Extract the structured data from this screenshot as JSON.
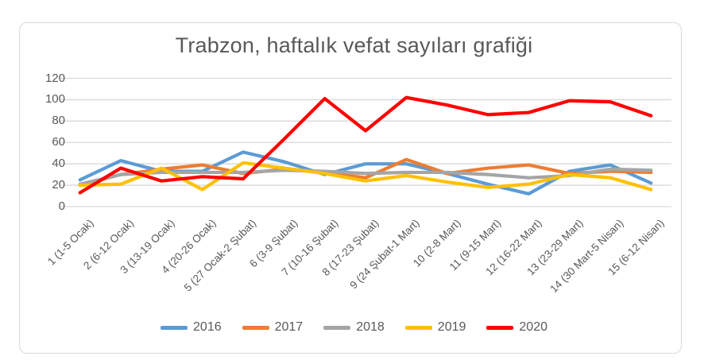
{
  "chart_data": {
    "type": "line",
    "title": "Trabzon, haftalık vefat sayıları grafiği",
    "xlabel": "",
    "ylabel": "",
    "ylim": [
      0,
      120
    ],
    "ytick_step": 20,
    "yticks": [
      0,
      20,
      40,
      60,
      80,
      100,
      120
    ],
    "grid": true,
    "legend_position": "bottom",
    "categories": [
      "1 (1-5 Ocak)",
      "2 (6-12 Ocak)",
      "3 (13-19 Ocak)",
      "4 (20-26 Ocak)",
      "5 (27 Ocak-2 Şubat)",
      "6 (3-9 Şubat)",
      "7 (10-16 Şubat)",
      "8 (17-23 Şubat)",
      "9 (24 Şubat-1 Mart)",
      "10 (2-8 Mart)",
      "11 (9-15 Mart)",
      "12 (16-22 Mart)",
      "13 (23-29 Mart)",
      "14 (30 Mart-5 Nisan)",
      "15 (6-12 Nisan)"
    ],
    "series": [
      {
        "name": "2016",
        "color": "#5B9BD5",
        "values": [
          25,
          43,
          33,
          33,
          51,
          42,
          30,
          40,
          40,
          31,
          21,
          12,
          33,
          39,
          22
        ]
      },
      {
        "name": "2017",
        "color": "#ED7D31",
        "values": [
          20,
          30,
          35,
          39,
          31,
          35,
          32,
          27,
          44,
          31,
          36,
          39,
          31,
          33,
          32
        ]
      },
      {
        "name": "2018",
        "color": "#A5A5A5",
        "values": [
          21,
          30,
          32,
          32,
          32,
          34,
          33,
          31,
          32,
          32,
          30,
          27,
          29,
          35,
          34
        ]
      },
      {
        "name": "2019",
        "color": "#FFC000",
        "values": [
          20,
          21,
          36,
          16,
          41,
          36,
          31,
          24,
          29,
          23,
          18,
          21,
          30,
          27,
          16
        ]
      },
      {
        "name": "2020",
        "color": "#FF0000",
        "values": [
          13,
          36,
          24,
          28,
          26,
          63,
          101,
          71,
          102,
          95,
          86,
          88,
          99,
          98,
          85
        ]
      }
    ]
  },
  "colors": {
    "grid": "#D9D9D9",
    "frame_border": "#D9D9D9",
    "axis_text": "#595959",
    "title_text": "#595959",
    "background": "#FFFFFF"
  }
}
